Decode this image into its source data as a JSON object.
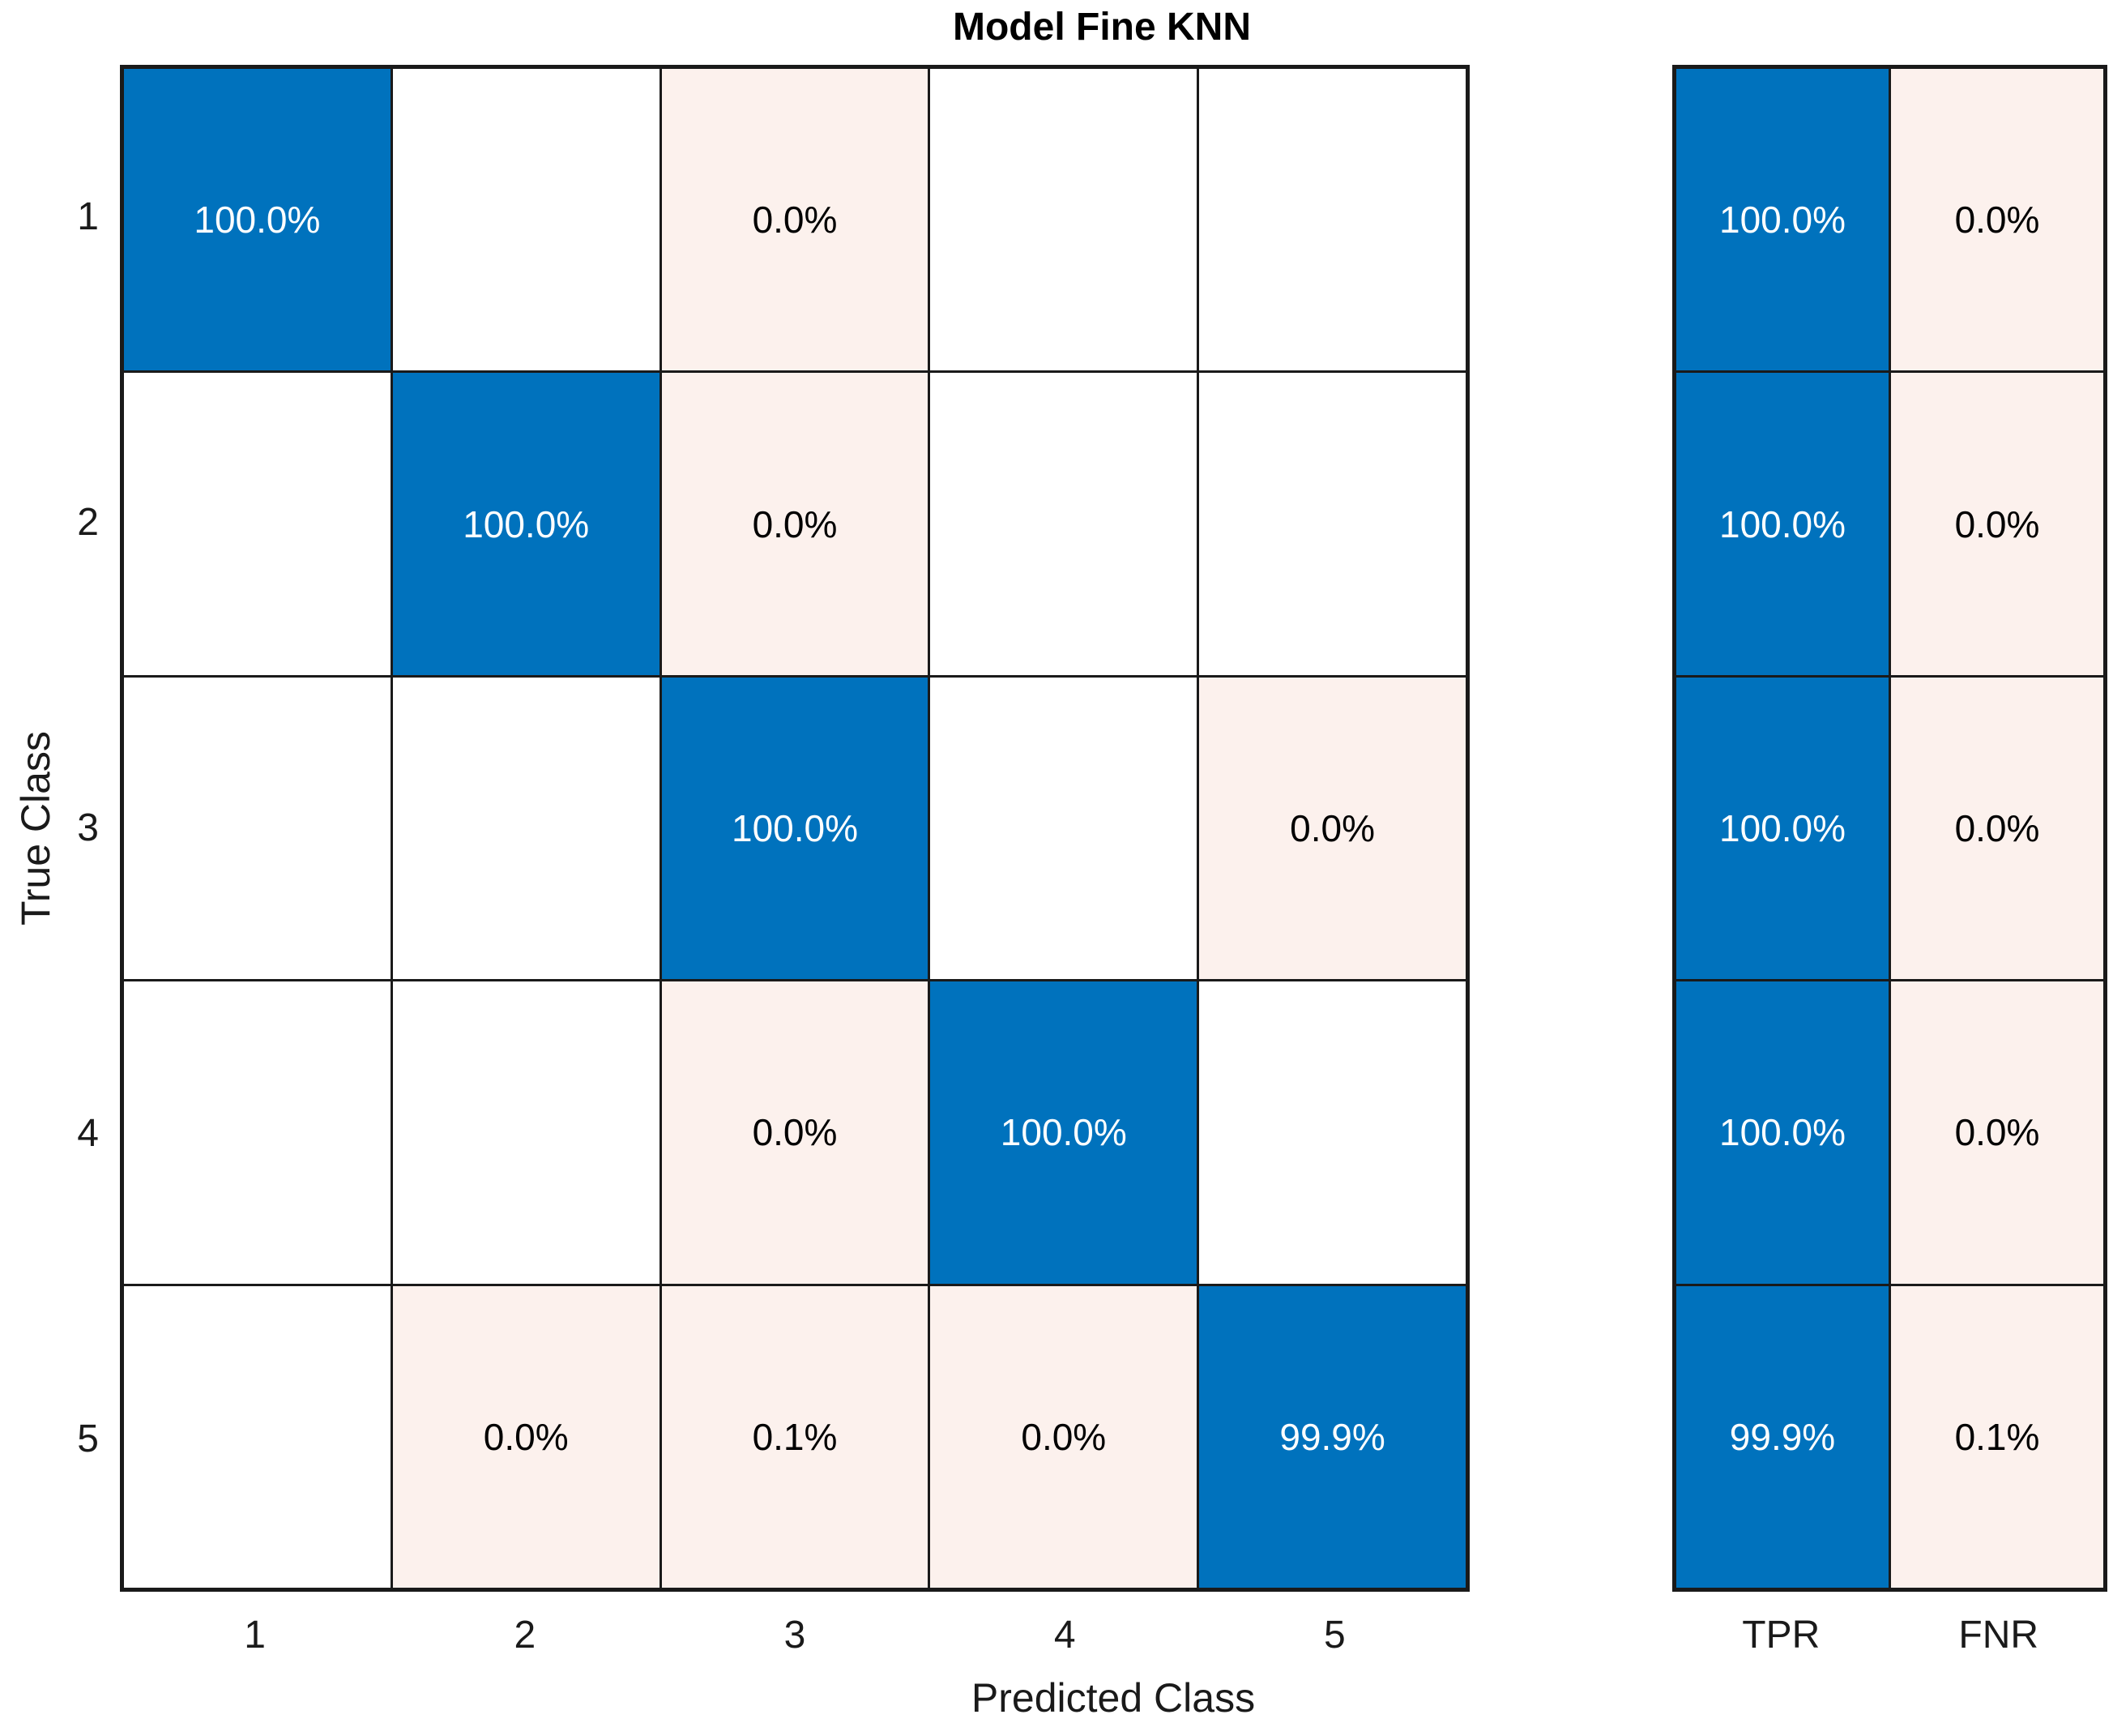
{
  "title": "Model Fine KNN",
  "x_axis_label": "Predicted Class",
  "y_axis_label": "True Class",
  "row_tick_labels": [
    "1",
    "2",
    "3",
    "4",
    "5"
  ],
  "col_tick_labels": [
    "1",
    "2",
    "3",
    "4",
    "5"
  ],
  "summary_tick_labels": [
    "TPR",
    "FNR"
  ],
  "colors": {
    "diagonal": "#0072BD",
    "off_diagonal": "#FCF1ED",
    "empty": "#FFFFFF",
    "grid": "#1A1A1A",
    "text_dark": "#000000",
    "text_light": "#FFFFFF"
  },
  "chart_data": {
    "type": "heatmap",
    "title": "Model Fine KNN",
    "xlabel": "Predicted Class",
    "ylabel": "True Class",
    "classes": [
      "1",
      "2",
      "3",
      "4",
      "5"
    ],
    "normalization": "row-percent",
    "value_format": "percent-1-decimal",
    "grid": true,
    "legend_position": "none",
    "matrix_percent": [
      [
        100.0,
        null,
        0.0,
        null,
        null
      ],
      [
        null,
        100.0,
        0.0,
        null,
        null
      ],
      [
        null,
        null,
        100.0,
        null,
        0.0
      ],
      [
        null,
        null,
        0.0,
        100.0,
        null
      ],
      [
        null,
        0.0,
        0.1,
        0.0,
        99.9
      ]
    ],
    "row_summary": {
      "columns": [
        "TPR",
        "FNR"
      ],
      "TPR_percent": [
        100.0,
        100.0,
        100.0,
        100.0,
        99.9
      ],
      "FNR_percent": [
        0.0,
        0.0,
        0.0,
        0.0,
        0.1
      ]
    }
  }
}
